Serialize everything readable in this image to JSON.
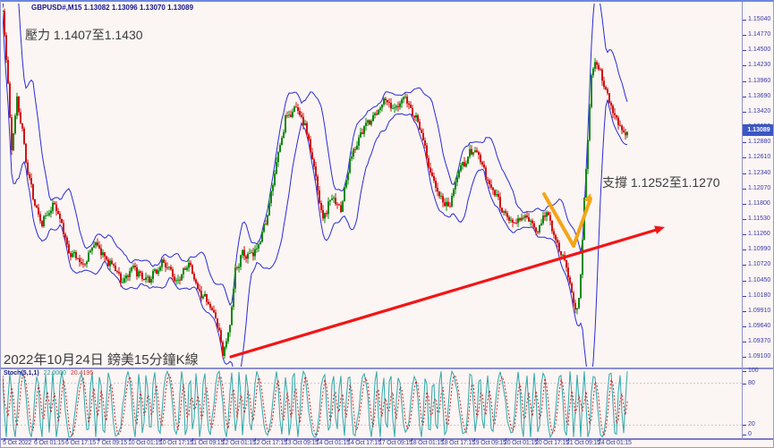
{
  "header": {
    "symbol_info": "GBPUSD#,M15  1.13082 1.13096 1.13070 1.13089"
  },
  "annotations": {
    "resistance": "壓力 1.1407至1.1430",
    "support": "支撐 1.1252至1.1270",
    "date_note": "2022年10月24日 鎊美15分鐘K線"
  },
  "price_axis": {
    "labels": [
      "1.15040",
      "1.14770",
      "1.14500",
      "1.14230",
      "1.13960",
      "1.13690",
      "1.13420",
      "1.13150",
      "1.12880",
      "1.12610",
      "1.12340",
      "1.12070",
      "1.11800",
      "1.11530",
      "1.11260",
      "1.10990",
      "1.10720",
      "1.10450",
      "1.10180",
      "1.09910",
      "1.09640",
      "1.09370",
      "1.09100"
    ],
    "current_price": "1.13089"
  },
  "time_axis": {
    "labels": [
      "5 Oct 2022",
      "6 Oct 01:15",
      "6 Oct 17:15",
      "7 Oct 09:15",
      "10 Oct 01:15",
      "10 Oct 17:15",
      "11 Oct 09:15",
      "12 Oct 01:15",
      "12 Oct 17:15",
      "13 Oct 09:15",
      "14 Oct 01:15",
      "14 Oct 17:15",
      "17 Oct 09:15",
      "18 Oct 01:15",
      "18 Oct 17:15",
      "19 Oct 09:15",
      "20 Oct 01:15",
      "20 Oct 17:15",
      "21 Oct 09:15",
      "24 Oct 01:15"
    ]
  },
  "stoch_panel": {
    "name": "Stoch(5,1,1)",
    "k_value": "22.0000",
    "d_value": "20.4195",
    "scale_labels": [
      "100",
      "80",
      "20",
      "0"
    ],
    "level_values": [
      80,
      20
    ]
  },
  "colors": {
    "chart_bg": "#FBF5F4",
    "frame": "#9193CE",
    "axis_text": "#3B3BA8",
    "symbol_text": "#16168C",
    "candle_up": "#0E890E",
    "candle_down": "#CE1515",
    "envelope": "#2B2BD5",
    "stoch_k": "#30A8A8",
    "stoch_d": "#CC2222",
    "level_line": "#C9C9C9",
    "price_tag_bg": "#3B57C4",
    "annotation_text": "#3C3C3C",
    "arrow_red": "#F21515",
    "arrow_yellow": "#F2A618"
  },
  "chart_data": {
    "type": "candlestick",
    "symbol": "GBPUSD#",
    "timeframe": "M15",
    "ohlc": {
      "open": 1.13082,
      "high": 1.13096,
      "low": 1.1307,
      "close": 1.13089
    },
    "y_axis_range": [
      1.091,
      1.1504
    ],
    "price_step_per_label": 0.0027,
    "price_path": [
      [
        2,
        1.152
      ],
      [
        8,
        1.1386
      ],
      [
        12,
        1.1276
      ],
      [
        18,
        1.137
      ],
      [
        30,
        1.1236
      ],
      [
        45,
        1.1142
      ],
      [
        60,
        1.1181
      ],
      [
        75,
        1.1103
      ],
      [
        90,
        1.1071
      ],
      [
        105,
        1.111
      ],
      [
        120,
        1.1079
      ],
      [
        135,
        1.1047
      ],
      [
        150,
        1.1063
      ],
      [
        165,
        1.104
      ],
      [
        180,
        1.1079
      ],
      [
        195,
        1.1047
      ],
      [
        210,
        1.1071
      ],
      [
        225,
        1.1016
      ],
      [
        240,
        1.0985
      ],
      [
        248,
        1.0914
      ],
      [
        255,
        1.0953
      ],
      [
        262,
        1.1063
      ],
      [
        270,
        1.1087
      ],
      [
        285,
        1.1095
      ],
      [
        295,
        1.1142
      ],
      [
        305,
        1.1221
      ],
      [
        318,
        1.1331
      ],
      [
        330,
        1.1347
      ],
      [
        340,
        1.1323
      ],
      [
        352,
        1.1221
      ],
      [
        360,
        1.1158
      ],
      [
        370,
        1.1189
      ],
      [
        380,
        1.1173
      ],
      [
        390,
        1.1252
      ],
      [
        400,
        1.1299
      ],
      [
        415,
        1.1331
      ],
      [
        428,
        1.1362
      ],
      [
        440,
        1.1347
      ],
      [
        452,
        1.1362
      ],
      [
        465,
        1.1331
      ],
      [
        478,
        1.1252
      ],
      [
        490,
        1.1189
      ],
      [
        500,
        1.1173
      ],
      [
        512,
        1.1236
      ],
      [
        525,
        1.1276
      ],
      [
        535,
        1.126
      ],
      [
        548,
        1.1205
      ],
      [
        560,
        1.1173
      ],
      [
        572,
        1.1142
      ],
      [
        585,
        1.1158
      ],
      [
        598,
        1.1134
      ],
      [
        610,
        1.1166
      ],
      [
        622,
        1.111
      ],
      [
        632,
        1.1063
      ],
      [
        640,
        1.1013
      ],
      [
        645,
        1.0992
      ],
      [
        648,
        1.1063
      ],
      [
        655,
        1.1268
      ],
      [
        660,
        1.141
      ],
      [
        665,
        1.1441
      ],
      [
        672,
        1.1394
      ],
      [
        680,
        1.1362
      ],
      [
        688,
        1.1331
      ],
      [
        695,
        1.1302
      ],
      [
        700,
        1.13089
      ]
    ],
    "indicators": [
      {
        "name": "Bollinger Bands",
        "color": "blue"
      },
      {
        "name": "Stochastic(5,1,1)",
        "k": 22.0,
        "d": 20.4195,
        "levels": [
          80,
          20
        ]
      }
    ],
    "red_arrow": {
      "from": [
        257,
        397
      ],
      "to": [
        742,
        252
      ]
    },
    "yellow_arrow": {
      "points": [
        [
          607,
          215
        ],
        [
          640,
          273
        ],
        [
          659,
          214
        ]
      ]
    }
  }
}
